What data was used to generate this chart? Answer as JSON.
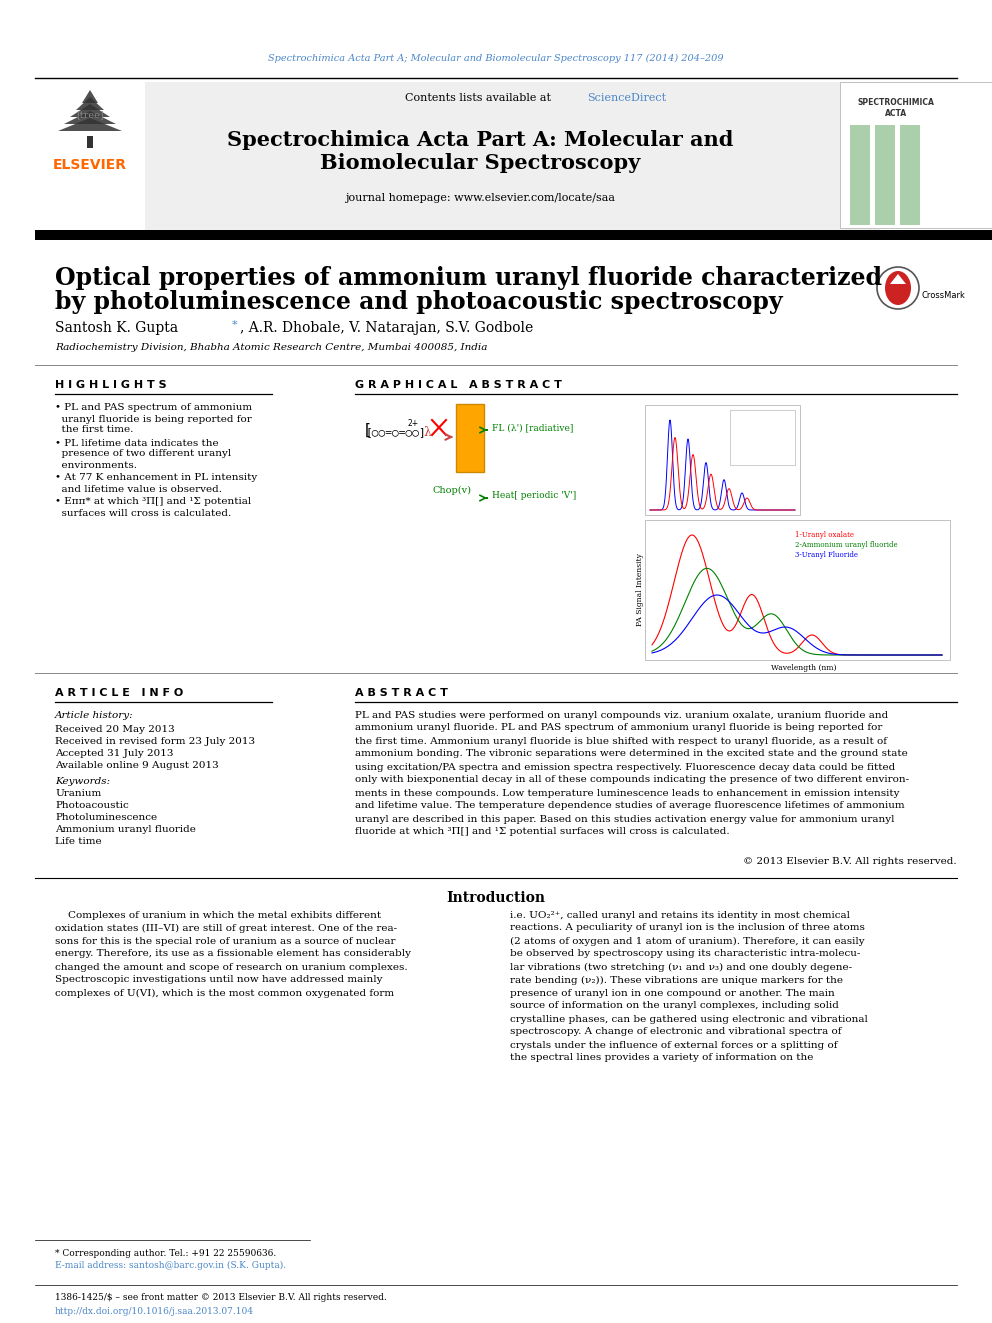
{
  "journal_line": "Spectrochimica Acta Part A; Molecular and Biomolecular Spectroscopy 117 (2014) 204–209",
  "journal_name_line1": "Spectrochimica Acta Part A: Molecular and",
  "journal_name_line2": "Biomolecular Spectroscopy",
  "contents_line": "Contents lists available at ",
  "sciencedirect_text": "ScienceDirect",
  "journal_homepage": "journal homepage: www.elsevier.com/locate/saa",
  "article_title_line1": "Optical properties of ammonium uranyl fluoride characterized",
  "article_title_line2": "by photoluminescence and photoacoustic spectroscopy",
  "author_name": "Santosh K. Gupta",
  "author_rest": ", A.R. Dhobale, V. Natarajan, S.V. Godbole",
  "affiliation": "Radiochemistry Division, Bhabha Atomic Research Centre, Mumbai 400085, India",
  "highlights_title": "H I G H L I G H T S",
  "highlight1_line1": "• PL and PAS spectrum of ammonium",
  "highlight1_line2": "  uranyl fluoride is being reported for",
  "highlight1_line3": "  the first time.",
  "highlight2_line1": "• PL lifetime data indicates the",
  "highlight2_line2": "  presence of two different uranyl",
  "highlight2_line3": "  environments.",
  "highlight3_line1": "• At 77 K enhancement in PL intensity",
  "highlight3_line2": "  and lifetime value is observed.",
  "highlight4_line1": "• Eππ* at which ³Π[] and ¹Σ potential",
  "highlight4_line2": "  surfaces will cross is calculated.",
  "graphical_abstract_title": "G R A P H I C A L   A B S T R A C T",
  "article_info_title": "A R T I C L E   I N F O",
  "article_history_title": "Article history:",
  "received": "Received 20 May 2013",
  "received_revised": "Received in revised form 23 July 2013",
  "accepted": "Accepted 31 July 2013",
  "available": "Available online 9 August 2013",
  "keywords_title": "Keywords:",
  "keywords": [
    "Uranium",
    "Photoacoustic",
    "Photoluminescence",
    "Ammonium uranyl fluoride",
    "Life time"
  ],
  "abstract_title": "A B S T R A C T",
  "abstract_line1": "PL and PAS studies were performed on uranyl compounds viz. uranium oxalate, uranium fluoride and",
  "abstract_line2": "ammonium uranyl fluoride. PL and PAS spectrum of ammonium uranyl fluoride is being reported for",
  "abstract_line3": "the first time. Ammonium uranyl fluoride is blue shifted with respect to uranyl fluoride, as a result of",
  "abstract_line4": "ammonium bonding. The vibronic separations were determined in the excited state and the ground state",
  "abstract_line5": "using excitation/PA spectra and emission spectra respectively. Fluorescence decay data could be fitted",
  "abstract_line6": "only with biexponential decay in all of these compounds indicating the presence of two different environ-",
  "abstract_line7": "ments in these compounds. Low temperature luminescence leads to enhancement in emission intensity",
  "abstract_line8": "and lifetime value. The temperature dependence studies of average fluorescence lifetimes of ammonium",
  "abstract_line9": "uranyl are described in this paper. Based on this studies activation energy value for ammonium uranyl",
  "abstract_line10": "fluoride at which ³Π[] and ¹Σ potential surfaces will cross is calculated.",
  "copyright": "© 2013 Elsevier B.V. All rights reserved.",
  "intro_title": "Introduction",
  "intro_left1": "    Complexes of uranium in which the metal exhibits different",
  "intro_left2": "oxidation states (III–VI) are still of great interest. One of the rea-",
  "intro_left3": "sons for this is the special role of uranium as a source of nuclear",
  "intro_left4": "energy. Therefore, its use as a fissionable element has considerably",
  "intro_left5": "changed the amount and scope of research on uranium complexes.",
  "intro_left6": "Spectroscopic investigations until now have addressed mainly",
  "intro_left7": "complexes of U(VI), which is the most common oxygenated form",
  "intro_right1": "i.e. UO₂²⁺, called uranyl and retains its identity in most chemical",
  "intro_right2": "reactions. A peculiarity of uranyl ion is the inclusion of three atoms",
  "intro_right3": "(2 atoms of oxygen and 1 atom of uranium). Therefore, it can easily",
  "intro_right4": "be observed by spectroscopy using its characteristic intra-molecu-",
  "intro_right5": "lar vibrations (two stretching (ν₁ and ν₃) and one doubly degene-",
  "intro_right6": "rate bending (ν₂)). These vibrations are unique markers for the",
  "intro_right7": "presence of uranyl ion in one compound or another. The main",
  "intro_right8": "source of information on the uranyl complexes, including solid",
  "intro_right9": "crystalline phases, can be gathered using electronic and vibrational",
  "intro_right10": "spectroscopy. A change of electronic and vibrational spectra of",
  "intro_right11": "crystals under the influence of external forces or a splitting of",
  "intro_right12": "the spectral lines provides a variety of information on the",
  "footnote1": "* Corresponding author. Tel.: +91 22 25590636.",
  "footnote2": "E-mail address: santosh@barc.gov.in (S.K. Gupta).",
  "footer_left": "1386-1425/$ – see front matter © 2013 Elsevier B.V. All rights reserved.",
  "footer_doi": "http://dx.doi.org/10.1016/j.saa.2013.07.104",
  "header_color": "#4a86c8",
  "elsevier_color": "#ff6600",
  "background_color": "#ffffff",
  "gray_box_color": "#efefef",
  "sciencedirect_color": "#4a86c8",
  "crossmark_color": "#cc2222"
}
